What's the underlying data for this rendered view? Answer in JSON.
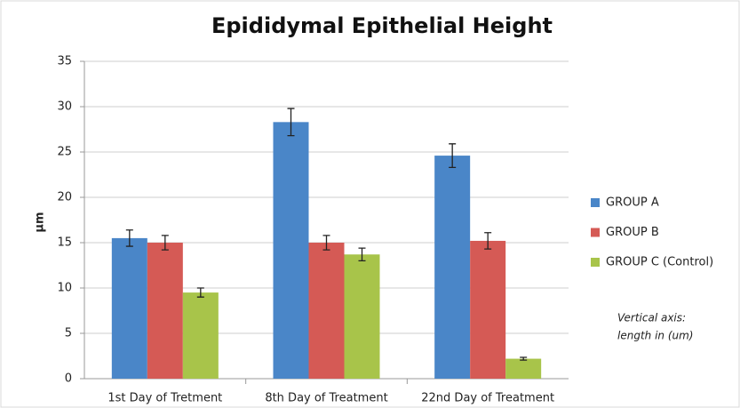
{
  "chart_data": {
    "type": "bar",
    "title": "Epididymal Epithelial  Height",
    "y_label": "µm",
    "annotation": [
      "Vertical axis:",
      "length in (um)"
    ],
    "categories": [
      "1st Day of Tretment",
      "8th Day of Treatment",
      "22nd Day of Treatment"
    ],
    "series": [
      {
        "name": "GROUP A",
        "color": "#4a86c8",
        "values": [
          15.5,
          28.3,
          24.6
        ],
        "errors": [
          0.9,
          1.5,
          1.3
        ]
      },
      {
        "name": "GROUP B",
        "color": "#d55a55",
        "values": [
          15.0,
          15.0,
          15.2
        ],
        "errors": [
          0.8,
          0.8,
          0.9
        ]
      },
      {
        "name": "GROUP C (Control)",
        "color": "#a8c44a",
        "values": [
          9.5,
          13.7,
          2.2
        ],
        "errors": [
          0.5,
          0.7,
          0.15
        ]
      }
    ],
    "ylim": [
      0,
      35
    ],
    "yticks": [
      0,
      5,
      10,
      15,
      20,
      25,
      30,
      35
    ],
    "grid": true,
    "legend": "right"
  }
}
